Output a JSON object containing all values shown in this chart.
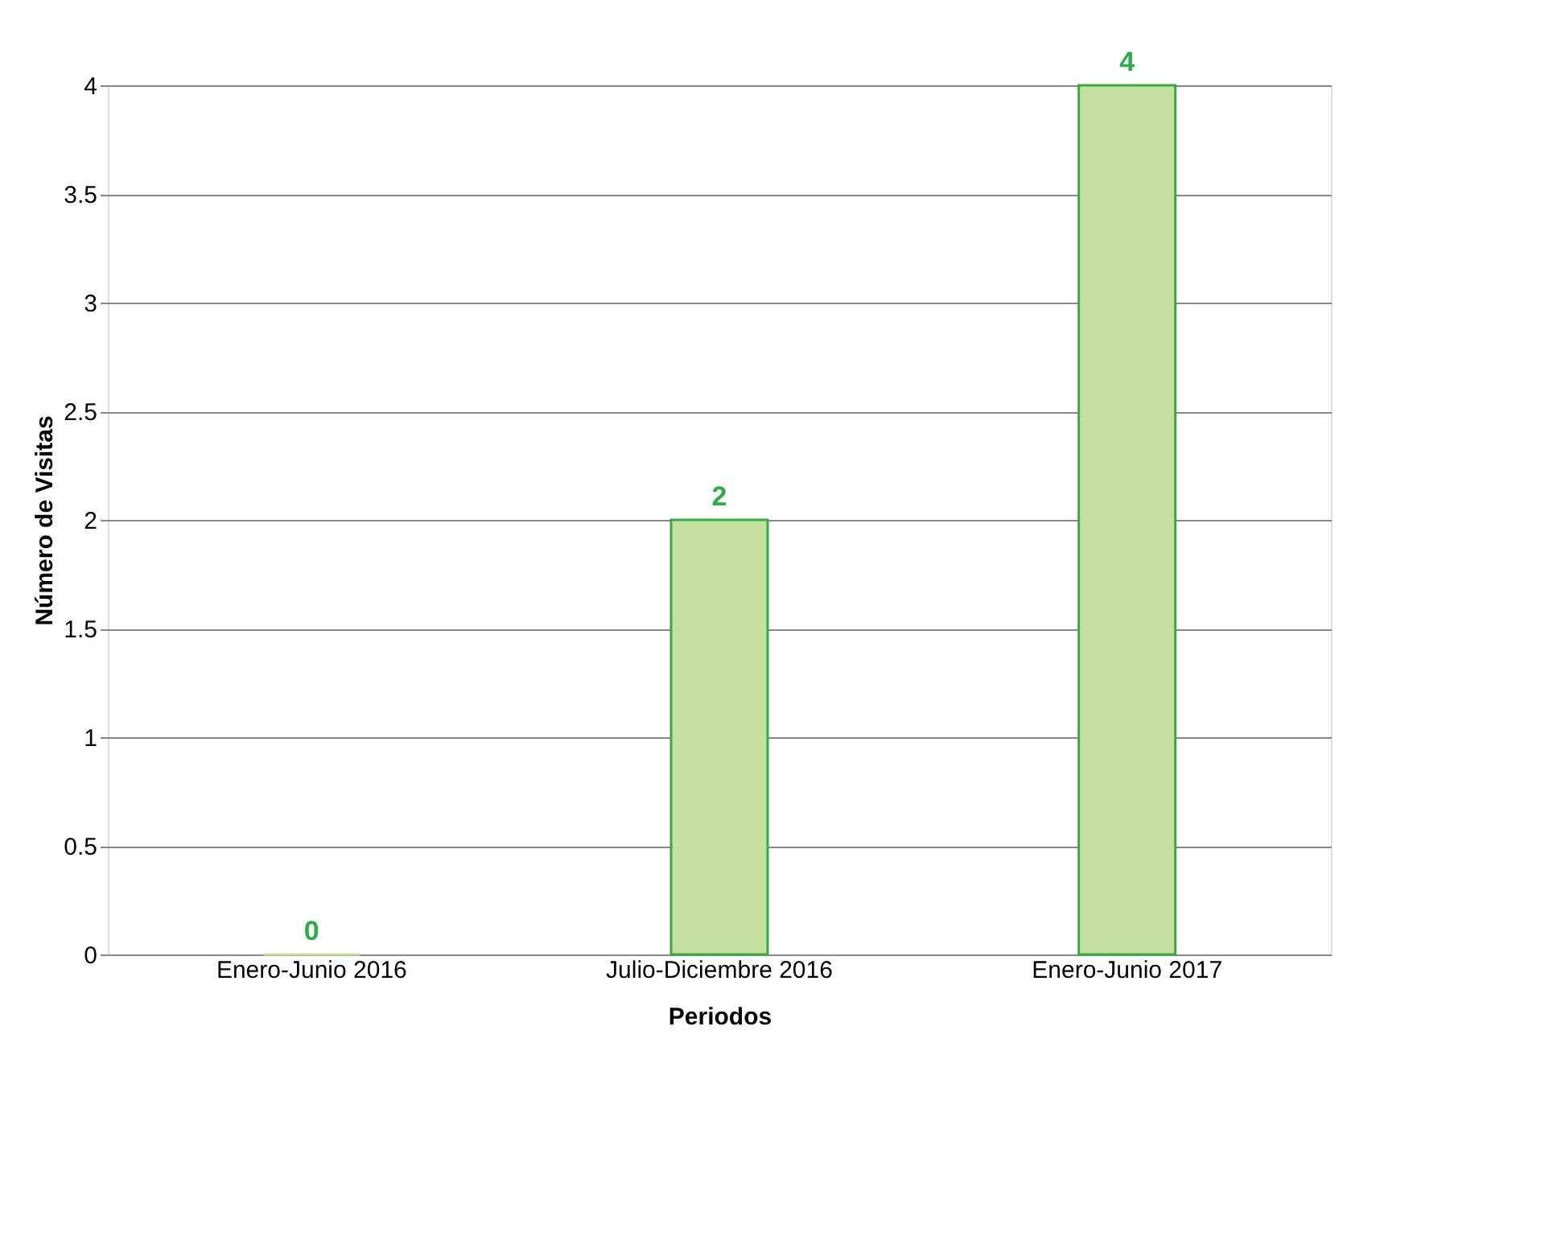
{
  "chart_data": {
    "type": "bar",
    "categories": [
      "Enero-Junio 2016",
      "Julio-Diciembre 2016",
      "Enero-Junio 2017"
    ],
    "values": [
      0,
      2,
      4
    ],
    "color": "#c5e0a0",
    "xlabel": "Periodos",
    "ylabel": "Número de Visitas",
    "ylim": [
      0,
      4
    ],
    "yticks": [
      0,
      0.5,
      1,
      1.5,
      2,
      2.5,
      3,
      3.5,
      4
    ],
    "grid": "y",
    "data_labels": true
  }
}
